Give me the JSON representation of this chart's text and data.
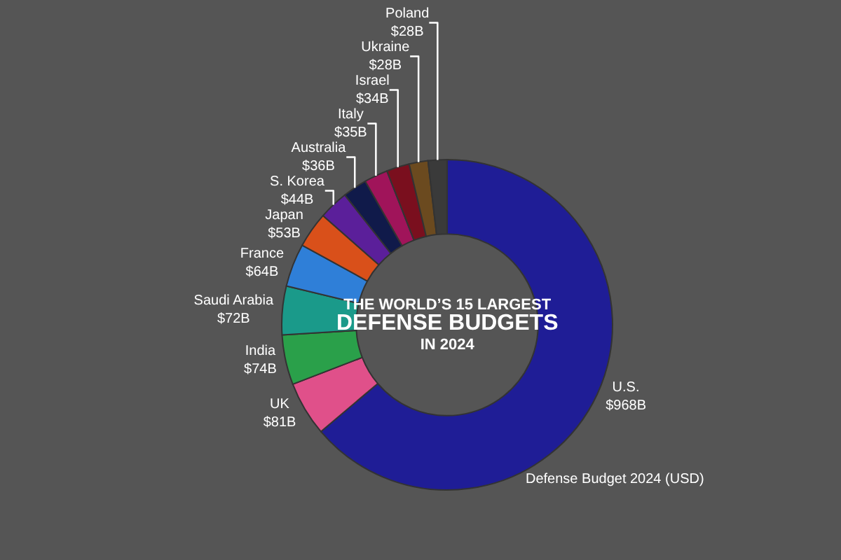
{
  "chart_data": {
    "type": "donut",
    "title": "THE WORLD’S 15 LARGEST DEFENSE BUDGETS IN 2024",
    "categories": [
      "U.S.",
      "UK",
      "India",
      "Saudi Arabia",
      "France",
      "Japan",
      "S. Korea",
      "Australia",
      "Italy",
      "Israel",
      "Ukraine",
      "Poland"
    ],
    "values": [
      968,
      81,
      74,
      72,
      64,
      53,
      44,
      36,
      35,
      34,
      28,
      28
    ],
    "value_labels": [
      "$968B",
      "$81B",
      "$74B",
      "$72B",
      "$64B",
      "$53B",
      "$44B",
      "$36B",
      "$35B",
      "$34B",
      "$28B",
      "$28B"
    ],
    "colors": [
      "#1f1d96",
      "#e0508a",
      "#2aa04a",
      "#1a9a8a",
      "#2f7fd8",
      "#d9501a",
      "#5b1f9a",
      "#101a4a",
      "#a0145a",
      "#7a0f1e",
      "#6b4a1f",
      "#3a3a3a"
    ],
    "annotations": [
      "Defense Budget 2024 (USD)"
    ],
    "legend": false
  }
}
